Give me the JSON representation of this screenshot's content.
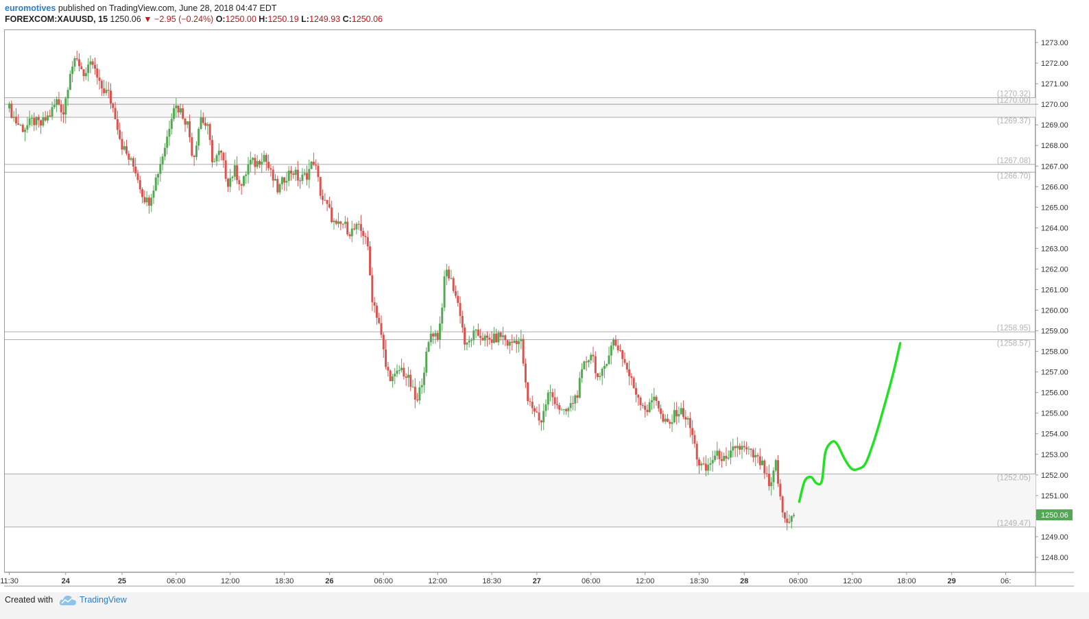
{
  "header": {
    "author": "euromotives",
    "published_text": "published on TradingView.com, June 28, 2018 04:47 EDT",
    "symbol": "FOREXCOM:XAUUSD, 15",
    "last": "1250.06",
    "down_arrow": "▼",
    "change": "−2.95 (−0.24%)",
    "o_label": "O:",
    "o_value": "1250.00",
    "h_label": "H:",
    "h_value": "1250.19",
    "l_label": "L:",
    "l_value": "1249.93",
    "c_label": "C:",
    "c_value": "1250.06"
  },
  "footer": {
    "created_with": "Created with",
    "brand": "TradingView",
    "logo_icon": "tradingview-cloud-icon"
  },
  "colors": {
    "up": "#53a853",
    "down": "#d9534f",
    "projection": "#22e022",
    "level_line": "#9e9e9e",
    "level_text": "#b3b3b3",
    "price_tag": "#53a853"
  },
  "chart_data": {
    "type": "candlestick",
    "timeframe": "15",
    "ylim": [
      1247.3,
      1273.6
    ],
    "yticks": [
      "1248.00",
      "1249.00",
      "1250.00",
      "1251.00",
      "1252.00",
      "1253.00",
      "1254.00",
      "1255.00",
      "1256.00",
      "1257.00",
      "1258.00",
      "1259.00",
      "1260.00",
      "1261.00",
      "1262.00",
      "1263.00",
      "1264.00",
      "1265.00",
      "1266.00",
      "1267.00",
      "1268.00",
      "1269.00",
      "1270.00",
      "1271.00",
      "1272.00",
      "1273.00"
    ],
    "hours_per_day": 23,
    "xlim_hours": [
      -0.5,
      113.8
    ],
    "xticks": [
      {
        "label": "11:30",
        "h": 0
      },
      {
        "label": "24",
        "h": 6.25
      },
      {
        "label": "25",
        "h": 12.5
      },
      {
        "label": "06:00",
        "h": 18.5
      },
      {
        "label": "12:00",
        "h": 24.5
      },
      {
        "label": "18:30",
        "h": 30.5
      },
      {
        "label": "26",
        "h": 35.5
      },
      {
        "label": "06:00",
        "h": 41.5
      },
      {
        "label": "12:00",
        "h": 47.5
      },
      {
        "label": "18:30",
        "h": 53.5
      },
      {
        "label": "27",
        "h": 58.5
      },
      {
        "label": "06:00",
        "h": 64.5
      },
      {
        "label": "12:00",
        "h": 70.5
      },
      {
        "label": "18:30",
        "h": 76.5
      },
      {
        "label": "28",
        "h": 81.5
      },
      {
        "label": "06:00",
        "h": 87.5
      },
      {
        "label": "12:00",
        "h": 93.5
      },
      {
        "label": "18:00",
        "h": 99.5
      },
      {
        "label": "29",
        "h": 104.5
      },
      {
        "label": "06:",
        "h": 110.5
      }
    ],
    "bold_xticks": [
      "24",
      "25",
      "26",
      "27",
      "28",
      "29"
    ],
    "levels": [
      {
        "value": 1270.32,
        "label": "(1270.32)"
      },
      {
        "value": 1270.0,
        "label": "(1270.00)"
      },
      {
        "value": 1269.37,
        "label": "(1269.37)"
      },
      {
        "value": 1267.08,
        "label": "(1267.08)"
      },
      {
        "value": 1266.7,
        "label": "(1266.70)"
      },
      {
        "value": 1258.95,
        "label": "(1258.95)"
      },
      {
        "value": 1258.57,
        "label": "(1258.57)"
      },
      {
        "value": 1252.05,
        "label": "(1252.05)"
      },
      {
        "value": 1249.47,
        "label": "(1249.47)"
      }
    ],
    "zones": [
      [
        1269.37,
        1270.32
      ],
      [
        1249.47,
        1252.05
      ]
    ],
    "last_price": {
      "value": 1250.06,
      "label": "1250.06"
    },
    "anchors": [
      [
        0,
        1269.8
      ],
      [
        0.8,
        1269.1
      ],
      [
        1.6,
        1268.8
      ],
      [
        2.6,
        1269.2
      ],
      [
        3.5,
        1269.0
      ],
      [
        4.5,
        1269.5
      ],
      [
        5.3,
        1270.2
      ],
      [
        6.0,
        1269.6
      ],
      [
        6.8,
        1271.8
      ],
      [
        7.6,
        1272.1
      ],
      [
        8.4,
        1271.4
      ],
      [
        9.2,
        1272.0
      ],
      [
        10.0,
        1270.9
      ],
      [
        11.0,
        1270.5
      ],
      [
        11.8,
        1269.4
      ],
      [
        12.4,
        1268.1
      ],
      [
        13.2,
        1267.4
      ],
      [
        14.0,
        1266.8
      ],
      [
        14.8,
        1265.6
      ],
      [
        15.4,
        1265.2
      ],
      [
        16.4,
        1266.6
      ],
      [
        17.4,
        1268.2
      ],
      [
        18.2,
        1270.0
      ],
      [
        19.0,
        1269.7
      ],
      [
        19.8,
        1269.0
      ],
      [
        20.4,
        1267.3
      ],
      [
        21.2,
        1269.4
      ],
      [
        22.0,
        1268.8
      ],
      [
        22.6,
        1267.1
      ],
      [
        23.4,
        1267.7
      ],
      [
        24.2,
        1266.2
      ],
      [
        25.0,
        1266.8
      ],
      [
        25.8,
        1266.0
      ],
      [
        26.6,
        1267.2
      ],
      [
        27.4,
        1267.1
      ],
      [
        28.2,
        1267.6
      ],
      [
        29.0,
        1266.6
      ],
      [
        29.8,
        1265.8
      ],
      [
        30.6,
        1266.5
      ],
      [
        31.4,
        1266.8
      ],
      [
        32.2,
        1266.3
      ],
      [
        33.0,
        1266.6
      ],
      [
        33.8,
        1267.3
      ],
      [
        34.6,
        1265.5
      ],
      [
        35.4,
        1264.9
      ],
      [
        36.2,
        1264.0
      ],
      [
        37.0,
        1264.2
      ],
      [
        37.8,
        1263.8
      ],
      [
        38.6,
        1264.0
      ],
      [
        39.6,
        1263.6
      ],
      [
        40.2,
        1260.7
      ],
      [
        41.0,
        1259.4
      ],
      [
        41.8,
        1257.1
      ],
      [
        42.6,
        1256.6
      ],
      [
        43.4,
        1257.2
      ],
      [
        44.4,
        1256.5
      ],
      [
        45.2,
        1255.4
      ],
      [
        46.0,
        1257.2
      ],
      [
        46.8,
        1259.0
      ],
      [
        47.6,
        1258.7
      ],
      [
        48.4,
        1262.0
      ],
      [
        49.2,
        1261.2
      ],
      [
        50.0,
        1259.9
      ],
      [
        50.6,
        1258.1
      ],
      [
        51.4,
        1258.8
      ],
      [
        52.2,
        1258.8
      ],
      [
        53.0,
        1258.5
      ],
      [
        53.8,
        1258.6
      ],
      [
        54.6,
        1258.8
      ],
      [
        55.4,
        1258.3
      ],
      [
        56.2,
        1258.6
      ],
      [
        56.8,
        1258.4
      ],
      [
        57.4,
        1255.6
      ],
      [
        58.2,
        1255.2
      ],
      [
        59.0,
        1254.6
      ],
      [
        59.8,
        1256.0
      ],
      [
        60.6,
        1255.6
      ],
      [
        61.4,
        1254.9
      ],
      [
        62.2,
        1255.3
      ],
      [
        63.0,
        1256.0
      ],
      [
        63.8,
        1257.4
      ],
      [
        64.6,
        1258.0
      ],
      [
        65.4,
        1256.4
      ],
      [
        66.2,
        1257.6
      ],
      [
        67.0,
        1258.5
      ],
      [
        67.8,
        1258.0
      ],
      [
        68.6,
        1257.0
      ],
      [
        69.2,
        1256.3
      ],
      [
        70.0,
        1255.6
      ],
      [
        70.8,
        1255.1
      ],
      [
        71.6,
        1256.0
      ],
      [
        72.4,
        1254.6
      ],
      [
        73.2,
        1254.4
      ],
      [
        74.0,
        1255.1
      ],
      [
        74.8,
        1255.0
      ],
      [
        75.6,
        1254.2
      ],
      [
        76.4,
        1252.6
      ],
      [
        77.2,
        1252.2
      ],
      [
        78.0,
        1252.8
      ],
      [
        78.8,
        1253.0
      ],
      [
        79.6,
        1252.5
      ],
      [
        80.4,
        1253.4
      ],
      [
        81.2,
        1253.3
      ],
      [
        82.0,
        1253.1
      ],
      [
        82.8,
        1252.8
      ],
      [
        83.6,
        1252.4
      ],
      [
        84.4,
        1251.2
      ],
      [
        85.0,
        1252.6
      ],
      [
        85.6,
        1250.4
      ],
      [
        86.2,
        1249.6
      ],
      [
        86.8,
        1250.2
      ],
      [
        87.2,
        1250.06
      ]
    ],
    "projection": [
      [
        87.6,
        1250.7
      ],
      [
        88.2,
        1251.7
      ],
      [
        88.9,
        1251.9
      ],
      [
        89.5,
        1251.6
      ],
      [
        90.1,
        1251.7
      ],
      [
        90.5,
        1253.1
      ],
      [
        91.2,
        1253.6
      ],
      [
        91.8,
        1253.5
      ],
      [
        92.6,
        1252.8
      ],
      [
        93.4,
        1252.3
      ],
      [
        94.2,
        1252.3
      ],
      [
        95.0,
        1252.6
      ],
      [
        96.0,
        1253.8
      ],
      [
        97.0,
        1255.3
      ],
      [
        98.0,
        1256.9
      ],
      [
        98.8,
        1258.4
      ]
    ]
  }
}
